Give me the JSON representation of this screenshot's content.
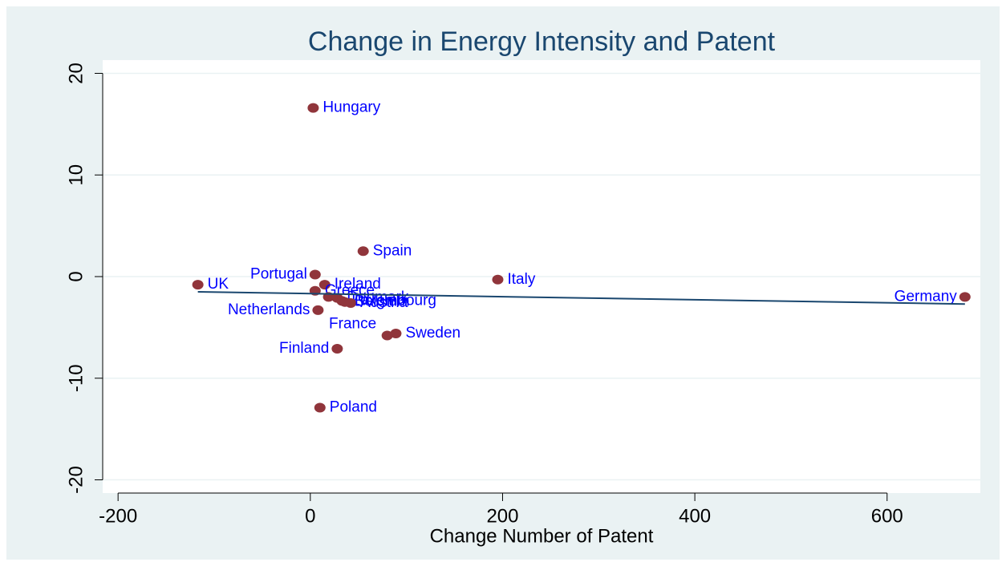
{
  "chart_data": {
    "type": "scatter",
    "title": "Change in Energy Intensity and Patent",
    "x_label": "Change Number of Patent",
    "xlim": [
      -216,
      697
    ],
    "ylim": [
      -21.3,
      21.3
    ],
    "xticks": [
      -200,
      0,
      200,
      400,
      600
    ],
    "yticks": [
      -20,
      -10,
      0,
      10,
      20
    ],
    "grid": true,
    "point_color": "#90353b",
    "label_color": "#0000ff",
    "fit_color": "#1a476f",
    "x": [
      -117,
      3,
      5,
      55,
      195,
      681,
      15,
      5,
      19,
      28,
      8,
      33,
      42,
      36,
      89,
      80,
      28,
      10
    ],
    "values": [
      -0.8,
      16.6,
      0.2,
      2.5,
      -0.3,
      -2.0,
      -0.8,
      -1.4,
      -2.0,
      -2.1,
      -3.3,
      -2.4,
      -2.6,
      -2.5,
      -5.6,
      -5.8,
      -7.1,
      -12.9
    ],
    "labels": [
      "UK",
      "Hungary",
      "Portugal",
      "Spain",
      "Italy",
      "Germany",
      "Ireland",
      "Greece",
      "France",
      "Denmark",
      "Netherlands",
      "Luxembourg",
      "Austria",
      "Belgium",
      "Sweden",
      null,
      "Finland",
      "Poland"
    ],
    "label_positions": [
      "right",
      "right",
      "left",
      "right",
      "right",
      "left",
      "right",
      "right",
      "below",
      "right",
      "left",
      "right",
      "right",
      "right",
      "right",
      "right",
      "left",
      "right"
    ],
    "fit_line": {
      "x": [
        -117,
        681
      ],
      "y": [
        -1.5,
        -2.7
      ]
    }
  }
}
